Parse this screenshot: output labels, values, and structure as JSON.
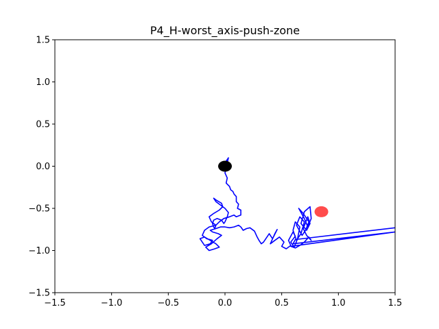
{
  "chart_data": {
    "type": "line",
    "title": "P4_H-worst_axis-push-zone",
    "xlabel": "",
    "ylabel": "",
    "xlim": [
      -1.5,
      1.5
    ],
    "ylim": [
      -1.5,
      1.5
    ],
    "grid": false,
    "x_ticks": [
      -1.5,
      -1.0,
      -0.5,
      0.0,
      0.5,
      1.0,
      1.5
    ],
    "y_ticks": [
      -1.5,
      -1.0,
      -0.5,
      0.0,
      0.5,
      1.0,
      1.5
    ],
    "x_tick_labels": [
      "−1.5",
      "−1.0",
      "−0.5",
      "0.0",
      "0.5",
      "1.0",
      "1.5"
    ],
    "y_tick_labels": [
      "−1.5",
      "−1.0",
      "−0.5",
      "0.0",
      "0.5",
      "1.0",
      "1.5"
    ],
    "series": [
      {
        "color": "#0000ff",
        "x": [
          0.02,
          0.01,
          0.03,
          0.0,
          0.02,
          0.01,
          0.04,
          0.05,
          0.07,
          0.08,
          0.1,
          0.1,
          0.12,
          0.11,
          0.14,
          0.14,
          0.1,
          0.08,
          0.04,
          -0.01,
          -0.05,
          -0.08,
          -0.09,
          -0.1,
          -0.11,
          -0.1,
          -0.07,
          -0.03,
          -0.01,
          0.0,
          0.02,
          0.03,
          0.0,
          -0.04,
          -0.08,
          -0.1,
          -0.08,
          -0.03,
          -0.02,
          -0.05,
          -0.1,
          -0.14,
          -0.12,
          -0.08,
          -0.14,
          -0.18,
          -0.2,
          -0.16,
          -0.11,
          -0.13,
          -0.18,
          -0.2,
          -0.22,
          -0.18,
          -0.13,
          -0.08,
          -0.05,
          -0.09,
          -0.14,
          -0.17,
          -0.12,
          -0.07,
          -0.03,
          -0.06,
          -0.11,
          -0.13,
          -0.08,
          -0.04,
          0.0,
          0.04,
          0.08,
          0.12,
          0.14,
          0.16,
          0.19,
          0.22,
          0.26,
          0.28,
          0.3,
          0.32,
          0.34,
          0.37,
          0.39,
          0.4,
          0.42,
          0.44,
          0.46,
          0.42,
          0.4,
          0.44,
          0.48,
          0.52,
          0.5,
          0.54,
          0.58,
          0.56,
          0.6,
          0.62,
          0.58,
          0.61,
          0.64,
          0.66,
          0.62,
          0.6,
          0.63,
          0.67,
          0.7,
          0.66,
          0.63,
          0.68,
          0.71,
          0.74,
          0.69,
          0.65,
          0.7,
          0.73,
          0.76,
          0.75,
          0.7,
          0.67,
          0.72,
          0.75,
          0.73,
          0.69,
          0.72,
          0.76,
          0.74,
          0.7,
          0.66,
          0.62,
          0.58,
          1.5,
          0.6,
          0.62,
          1.5
        ],
        "y": [
          0.0,
          0.06,
          0.1,
          -0.08,
          -0.14,
          -0.2,
          -0.24,
          -0.28,
          -0.3,
          -0.33,
          -0.36,
          -0.42,
          -0.45,
          -0.5,
          -0.52,
          -0.58,
          -0.6,
          -0.58,
          -0.6,
          -0.62,
          -0.66,
          -0.7,
          -0.74,
          -0.72,
          -0.68,
          -0.64,
          -0.62,
          -0.64,
          -0.68,
          -0.66,
          -0.6,
          -0.55,
          -0.5,
          -0.46,
          -0.42,
          -0.38,
          -0.4,
          -0.44,
          -0.48,
          -0.52,
          -0.56,
          -0.6,
          -0.66,
          -0.7,
          -0.72,
          -0.76,
          -0.82,
          -0.86,
          -0.88,
          -0.92,
          -0.94,
          -0.9,
          -0.86,
          -0.84,
          -0.88,
          -0.92,
          -0.96,
          -0.98,
          -1.0,
          -0.96,
          -0.92,
          -0.86,
          -0.82,
          -0.8,
          -0.78,
          -0.76,
          -0.74,
          -0.72,
          -0.72,
          -0.73,
          -0.72,
          -0.7,
          -0.72,
          -0.76,
          -0.74,
          -0.73,
          -0.77,
          -0.83,
          -0.88,
          -0.92,
          -0.9,
          -0.84,
          -0.8,
          -0.82,
          -0.86,
          -0.8,
          -0.75,
          -0.86,
          -0.92,
          -0.88,
          -0.84,
          -0.9,
          -0.95,
          -0.98,
          -0.94,
          -0.88,
          -0.78,
          -0.83,
          -0.9,
          -0.96,
          -0.86,
          -0.72,
          -0.66,
          -0.76,
          -0.88,
          -0.8,
          -0.66,
          -0.6,
          -0.7,
          -0.82,
          -0.76,
          -0.66,
          -0.56,
          -0.5,
          -0.62,
          -0.72,
          -0.62,
          -0.48,
          -0.54,
          -0.68,
          -0.76,
          -0.68,
          -0.6,
          -0.74,
          -0.82,
          -0.88,
          -0.84,
          -0.9,
          -0.94,
          -0.97,
          -0.95,
          -0.78,
          -0.92,
          -0.87,
          -0.73
        ]
      }
    ],
    "markers": [
      {
        "x": 0.0,
        "y": 0.0,
        "color": "#000000"
      },
      {
        "x": 0.85,
        "y": -0.54,
        "color": "#ff0000"
      }
    ]
  }
}
